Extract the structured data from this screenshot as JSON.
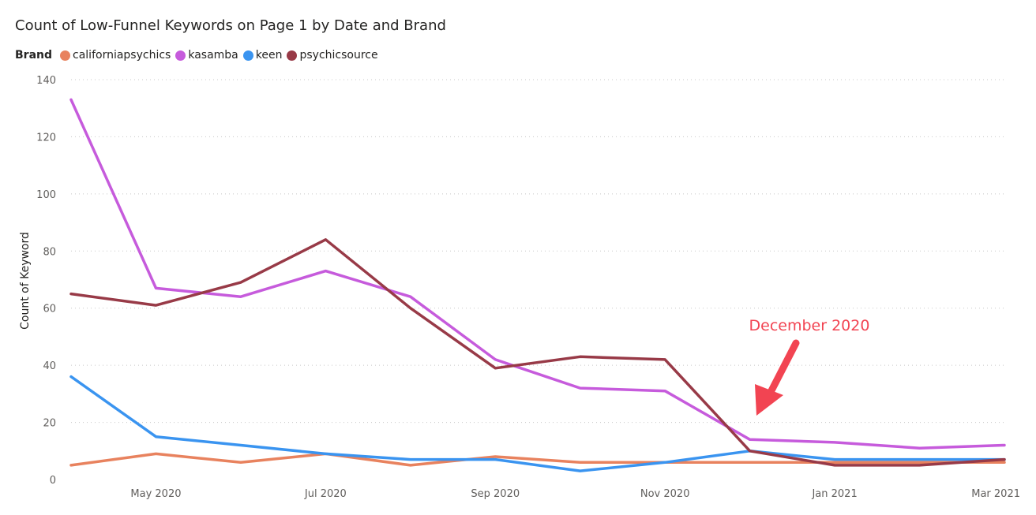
{
  "chart_data": {
    "type": "line",
    "title": "Count of Low-Funnel Keywords on Page 1 by Date and Brand",
    "legend_title": "Brand",
    "ylabel": "Count of Keyword",
    "xlabel": "",
    "ylim": [
      0,
      140
    ],
    "yticks": [
      "0",
      "20",
      "40",
      "60",
      "80",
      "100",
      "120",
      "140"
    ],
    "grid": true,
    "legend_position": "top-left",
    "x": [
      "2020-04",
      "2020-05",
      "2020-06",
      "2020-07",
      "2020-08",
      "2020-09",
      "2020-10",
      "2020-11",
      "2020-12",
      "2021-01",
      "2021-02",
      "2021-03"
    ],
    "xtick_labels": [
      {
        "label": "May 2020",
        "x": "2020-05"
      },
      {
        "label": "Jul 2020",
        "x": "2020-07"
      },
      {
        "label": "Sep 2020",
        "x": "2020-09"
      },
      {
        "label": "Nov 2020",
        "x": "2020-11"
      },
      {
        "label": "Jan 2021",
        "x": "2021-01"
      },
      {
        "label": "Mar 2021",
        "x": "2021-03"
      }
    ],
    "series": [
      {
        "name": "californiapsychics",
        "color": "#E8825E",
        "values": [
          5,
          9,
          6,
          9,
          5,
          8,
          6,
          6,
          6,
          6,
          6,
          6
        ]
      },
      {
        "name": "kasamba",
        "color": "#C65BDC",
        "values": [
          133,
          67,
          64,
          73,
          64,
          42,
          32,
          31,
          14,
          13,
          11,
          12
        ]
      },
      {
        "name": "keen",
        "color": "#3A94F0",
        "values": [
          36,
          15,
          12,
          9,
          7,
          7,
          3,
          6,
          10,
          7,
          7,
          7
        ]
      },
      {
        "name": "psychicsource",
        "color": "#983A47",
        "values": [
          65,
          61,
          69,
          84,
          60,
          39,
          43,
          42,
          10,
          5,
          5,
          7
        ]
      }
    ],
    "annotation": {
      "text": "December 2020",
      "x": "2020-12",
      "color": "#F24452"
    }
  }
}
